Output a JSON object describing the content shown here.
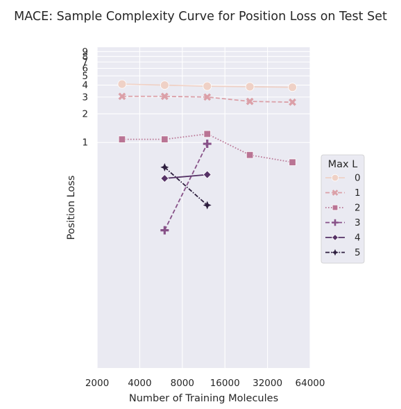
{
  "chart_data": {
    "type": "line",
    "title": "MACE: Sample Complexity Curve for Position Loss on Test Set",
    "xlabel": "Number of Training Molecules",
    "ylabel": "Position Loss",
    "xscale": "log2",
    "yscale": "log",
    "xlim": [
      2000,
      64000
    ],
    "xticks": [
      2000,
      4000,
      8000,
      16000,
      32000,
      64000
    ],
    "x_tick_labels": [
      "2000",
      "4000",
      "8000",
      "16000",
      "32000",
      "64000"
    ],
    "ylim": [
      0.0043,
      10.0
    ],
    "yticks": [
      1,
      2,
      3,
      4,
      5,
      6,
      7,
      8,
      9
    ],
    "y_tick_labels": [
      "1",
      "2",
      "3",
      "4",
      "5",
      "6",
      "7",
      "8",
      "9"
    ],
    "grid": true,
    "background": "#eaeaf2",
    "legend": {
      "title": "Max L",
      "position": "right",
      "entries": [
        "0",
        "1",
        "2",
        "3",
        "4",
        "5"
      ]
    },
    "series": [
      {
        "name": "0",
        "color": "#efd1c6",
        "dash": "solid",
        "marker": "circle",
        "x": [
          3000,
          6000,
          12000,
          24000,
          48000
        ],
        "y": [
          4.1,
          4.0,
          3.9,
          3.85,
          3.8
        ]
      },
      {
        "name": "1",
        "color": "#dba0a8",
        "dash": "dashed",
        "marker": "x",
        "x": [
          3000,
          6000,
          12000,
          24000,
          48000
        ],
        "y": [
          3.05,
          3.05,
          3.0,
          2.7,
          2.65
        ]
      },
      {
        "name": "2",
        "color": "#b97494",
        "dash": "dotted",
        "marker": "square",
        "x": [
          3000,
          6000,
          12000,
          24000,
          48000
        ],
        "y": [
          1.08,
          1.08,
          1.23,
          0.74,
          0.62
        ]
      },
      {
        "name": "3",
        "color": "#875188",
        "dash": "dashed",
        "marker": "plus",
        "x": [
          6000,
          12000
        ],
        "y": [
          0.12,
          0.97
        ]
      },
      {
        "name": "4",
        "color": "#563266",
        "dash": "solid",
        "marker": "diamond",
        "x": [
          6000,
          12000
        ],
        "y": [
          0.42,
          0.46
        ]
      },
      {
        "name": "5",
        "color": "#2d1e3e",
        "dash": "dashdot",
        "marker": "star",
        "x": [
          6000,
          12000
        ],
        "y": [
          0.55,
          0.22
        ]
      }
    ]
  }
}
